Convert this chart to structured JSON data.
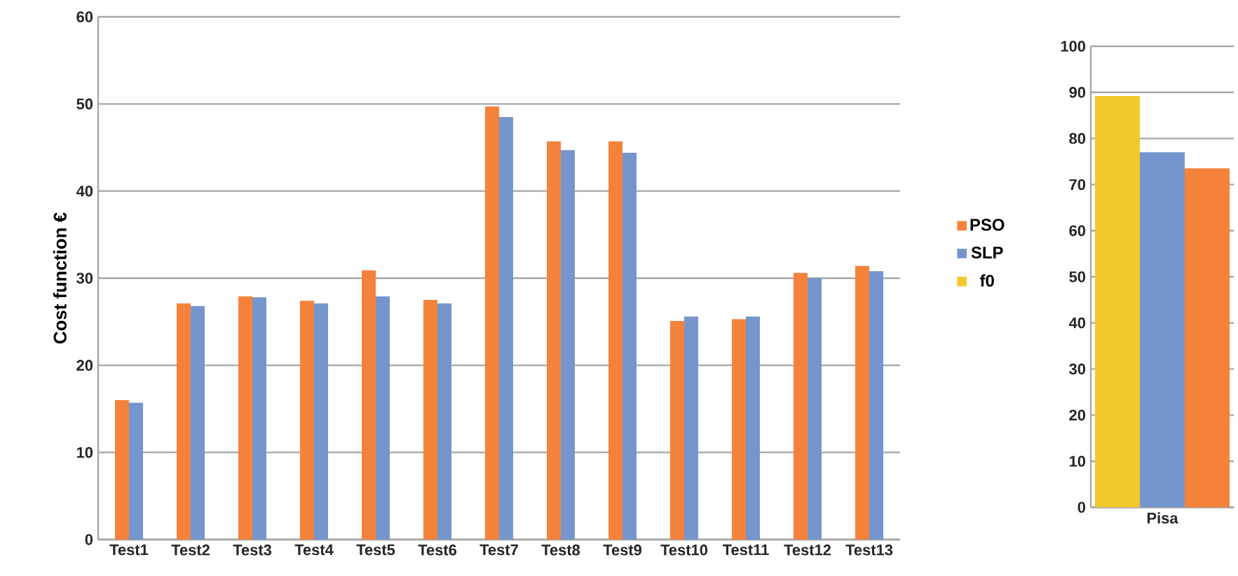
{
  "chart_data": [
    {
      "type": "bar",
      "ylabel": "Cost function €",
      "categories": [
        "Test1",
        "Test2",
        "Test3",
        "Test4",
        "Test5",
        "Test6",
        "Test7",
        "Test8",
        "Test9",
        "Test10",
        "Test11",
        "Test12",
        "Test13"
      ],
      "series": [
        {
          "color": "#f5823a",
          "values": [
            16.0,
            27.1,
            27.9,
            27.4,
            30.9,
            27.5,
            49.7,
            45.7,
            45.7,
            25.1,
            25.3,
            30.6,
            31.4
          ]
        },
        {
          "color": "#7596cc",
          "values": [
            15.7,
            26.8,
            27.8,
            27.1,
            27.9,
            27.1,
            48.5,
            44.7,
            44.4,
            25.6,
            25.6,
            30.0,
            30.8
          ]
        }
      ],
      "ylim": [
        0,
        60
      ],
      "yticks": [
        0,
        10,
        20,
        30,
        40,
        50,
        60
      ],
      "grid": "y"
    },
    {
      "type": "bar",
      "categories": [
        "Pisa"
      ],
      "series": [
        {
          "name": "f0",
          "color": "#f2c82a",
          "values": [
            89.2
          ]
        },
        {
          "name": "SLP",
          "color": "#7596cc",
          "values": [
            77.0
          ]
        },
        {
          "name": "PSO",
          "color": "#f5823a",
          "values": [
            73.5
          ]
        }
      ],
      "ylim": [
        0,
        100
      ],
      "yticks": [
        0,
        10,
        20,
        30,
        40,
        50,
        60,
        70,
        80,
        90,
        100
      ],
      "grid": "y",
      "legend": "left"
    }
  ]
}
